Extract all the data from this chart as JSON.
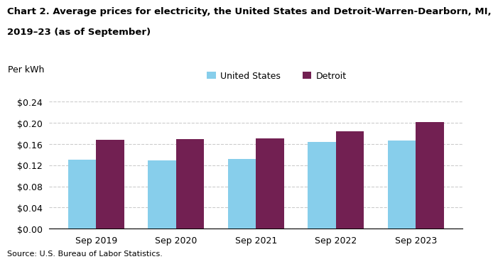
{
  "title_line1": "Chart 2. Average prices for electricity, the United States and Detroit-Warren-Dearborn, MI,",
  "title_line2": "2019–23 (as of September)",
  "ylabel": "Per kWh",
  "source": "Source: U.S. Bureau of Labor Statistics.",
  "categories": [
    "Sep 2019",
    "Sep 2020",
    "Sep 2021",
    "Sep 2022",
    "Sep 2023"
  ],
  "us_values": [
    0.13,
    0.1295,
    0.1315,
    0.164,
    0.166
  ],
  "detroit_values": [
    0.1675,
    0.169,
    0.171,
    0.184,
    0.201
  ],
  "us_color": "#87CEEB",
  "detroit_color": "#722052",
  "us_label": "United States",
  "detroit_label": "Detroit",
  "ylim": [
    0,
    0.26
  ],
  "yticks": [
    0.0,
    0.04,
    0.08,
    0.12,
    0.16,
    0.2,
    0.24
  ],
  "background_color": "#ffffff",
  "grid_color": "#cccccc",
  "bar_width": 0.35,
  "title_fontsize": 9.5,
  "axis_fontsize": 9,
  "legend_fontsize": 9,
  "tick_fontsize": 9,
  "source_fontsize": 8
}
